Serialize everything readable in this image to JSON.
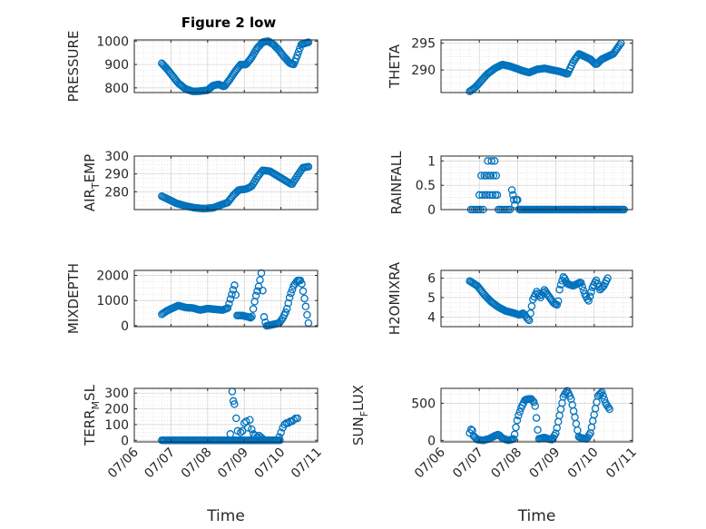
{
  "figure_title": "Figure 2 low",
  "x_tick_labels": [
    "07/06",
    "07/07",
    "07/08",
    "07/09",
    "07/10",
    "07/11"
  ],
  "xlabel": "Time",
  "marker_color": "#0072BD",
  "chart_data": [
    {
      "type": "scatter",
      "panel": "top-left",
      "ylabel": "PRESSURE",
      "xlim": [
        0,
        5
      ],
      "ylim": [
        780,
        1005
      ],
      "yticks": [
        800,
        900,
        1000
      ],
      "x_tick_labels_shown": false,
      "grid": true,
      "marker": "open-circle",
      "anchors": [
        [
          0.75,
          905
        ],
        [
          0.9,
          880
        ],
        [
          1.05,
          850
        ],
        [
          1.2,
          820
        ],
        [
          1.4,
          795
        ],
        [
          1.6,
          785
        ],
        [
          1.8,
          786
        ],
        [
          2.0,
          790
        ],
        [
          2.15,
          810
        ],
        [
          2.3,
          815
        ],
        [
          2.45,
          805
        ],
        [
          2.6,
          835
        ],
        [
          2.75,
          870
        ],
        [
          2.9,
          900
        ],
        [
          3.05,
          900
        ],
        [
          3.2,
          930
        ],
        [
          3.35,
          970
        ],
        [
          3.5,
          995
        ],
        [
          3.65,
          1000
        ],
        [
          3.8,
          985
        ],
        [
          3.95,
          960
        ],
        [
          4.1,
          930
        ],
        [
          4.25,
          905
        ],
        [
          4.35,
          900
        ],
        [
          4.45,
          940
        ],
        [
          4.55,
          985
        ],
        [
          4.75,
          995
        ]
      ],
      "n_points": 120
    },
    {
      "type": "scatter",
      "panel": "top-right",
      "ylabel": "THETA",
      "xlim": [
        0,
        5
      ],
      "ylim": [
        285.8,
        295.6
      ],
      "yticks": [
        290,
        295
      ],
      "x_tick_labels_shown": false,
      "grid": true,
      "marker": "open-circle",
      "anchors": [
        [
          0.75,
          286
        ],
        [
          0.9,
          286.8
        ],
        [
          1.05,
          288
        ],
        [
          1.2,
          289.2
        ],
        [
          1.4,
          290.3
        ],
        [
          1.6,
          291
        ],
        [
          1.8,
          290.7
        ],
        [
          2.0,
          290.2
        ],
        [
          2.15,
          289.8
        ],
        [
          2.3,
          289.5
        ],
        [
          2.5,
          290.1
        ],
        [
          2.7,
          290.3
        ],
        [
          2.9,
          290
        ],
        [
          3.05,
          289.8
        ],
        [
          3.2,
          289.5
        ],
        [
          3.3,
          289.2
        ],
        [
          3.45,
          291.5
        ],
        [
          3.6,
          293
        ],
        [
          3.75,
          292.5
        ],
        [
          3.9,
          292
        ],
        [
          4.05,
          291
        ],
        [
          4.2,
          292
        ],
        [
          4.35,
          292.5
        ],
        [
          4.5,
          293
        ],
        [
          4.7,
          295
        ]
      ],
      "n_points": 120
    },
    {
      "type": "scatter",
      "panel": "mid-left",
      "ylabel": "AIR_TEMP",
      "xlim": [
        0,
        5
      ],
      "ylim": [
        270,
        300
      ],
      "yticks": [
        280,
        290,
        300
      ],
      "x_tick_labels_shown": false,
      "grid": true,
      "marker": "open-circle",
      "anchors": [
        [
          0.75,
          277.5
        ],
        [
          0.95,
          275.5
        ],
        [
          1.15,
          273.5
        ],
        [
          1.4,
          272
        ],
        [
          1.65,
          271
        ],
        [
          1.9,
          270.5
        ],
        [
          2.15,
          271
        ],
        [
          2.35,
          272.5
        ],
        [
          2.55,
          274
        ],
        [
          2.7,
          278
        ],
        [
          2.85,
          281
        ],
        [
          3.05,
          281.5
        ],
        [
          3.2,
          283
        ],
        [
          3.35,
          288
        ],
        [
          3.5,
          292
        ],
        [
          3.7,
          291.5
        ],
        [
          3.9,
          289
        ],
        [
          4.1,
          286.5
        ],
        [
          4.3,
          284
        ],
        [
          4.45,
          289
        ],
        [
          4.6,
          293.5
        ],
        [
          4.75,
          294
        ]
      ],
      "n_points": 110
    },
    {
      "type": "scatter",
      "panel": "mid-right",
      "ylabel": "RAINFALL",
      "xlim": [
        0,
        5
      ],
      "ylim": [
        0,
        1.1
      ],
      "yticks": [
        0,
        0.5,
        1
      ],
      "x_tick_labels_shown": false,
      "grid": true,
      "marker": "open-circle",
      "points": [
        [
          0.78,
          0
        ],
        [
          0.83,
          0
        ],
        [
          0.88,
          0
        ],
        [
          0.93,
          0
        ],
        [
          0.98,
          0
        ],
        [
          1.0,
          0.3
        ],
        [
          1.03,
          0
        ],
        [
          1.05,
          0.7
        ],
        [
          1.08,
          0.3
        ],
        [
          1.1,
          0
        ],
        [
          1.13,
          0.7
        ],
        [
          1.15,
          0.3
        ],
        [
          1.18,
          0.7
        ],
        [
          1.2,
          0.3
        ],
        [
          1.22,
          1.0
        ],
        [
          1.25,
          0.7
        ],
        [
          1.27,
          0.3
        ],
        [
          1.3,
          0.7
        ],
        [
          1.32,
          1.0
        ],
        [
          1.35,
          0.3
        ],
        [
          1.37,
          0.7
        ],
        [
          1.4,
          1.0
        ],
        [
          1.42,
          0.3
        ],
        [
          1.44,
          0.7
        ],
        [
          1.47,
          0.3
        ],
        [
          1.5,
          0
        ],
        [
          1.55,
          0
        ],
        [
          1.6,
          0
        ],
        [
          1.65,
          0
        ],
        [
          1.7,
          0
        ],
        [
          1.75,
          0
        ],
        [
          1.8,
          0
        ],
        [
          1.85,
          0.4
        ],
        [
          1.88,
          0.3
        ],
        [
          1.9,
          0.2
        ],
        [
          1.93,
          0.1
        ],
        [
          1.97,
          0.2
        ],
        [
          2.0,
          0.2
        ]
      ],
      "zero_fill": [
        2.05,
        4.78
      ]
    },
    {
      "type": "scatter",
      "panel": "lower-left",
      "ylabel": "MIXDEPTH",
      "xlim": [
        0,
        5
      ],
      "ylim": [
        -40,
        2200
      ],
      "yticks": [
        0,
        1000,
        2000
      ],
      "x_tick_labels_shown": false,
      "grid": true,
      "marker": "open-circle",
      "anchors": [
        [
          0.75,
          450
        ],
        [
          0.9,
          600
        ],
        [
          1.05,
          700
        ],
        [
          1.2,
          800
        ],
        [
          1.4,
          720
        ],
        [
          1.6,
          700
        ],
        [
          1.8,
          620
        ],
        [
          2.0,
          680
        ],
        [
          2.2,
          650
        ],
        [
          2.4,
          620
        ],
        [
          2.55,
          700
        ],
        [
          2.65,
          1200
        ],
        [
          2.75,
          1700
        ],
        [
          2.8,
          400
        ],
        [
          2.95,
          400
        ],
        [
          3.1,
          350
        ],
        [
          3.2,
          300
        ],
        [
          3.3,
          1100
        ],
        [
          3.4,
          1600
        ],
        [
          3.48,
          2200
        ],
        [
          3.53,
          400
        ],
        [
          3.6,
          -10
        ],
        [
          3.8,
          50
        ],
        [
          3.95,
          100
        ],
        [
          4.05,
          300
        ],
        [
          4.15,
          600
        ],
        [
          4.25,
          1200
        ],
        [
          4.35,
          1600
        ],
        [
          4.45,
          1800
        ],
        [
          4.55,
          1800
        ],
        [
          4.65,
          1000
        ],
        [
          4.75,
          100
        ]
      ],
      "n_points": 110
    },
    {
      "type": "scatter",
      "panel": "lower-right",
      "ylabel": "H2OMIXRA",
      "xlim": [
        0,
        5
      ],
      "ylim": [
        3.5,
        6.4
      ],
      "yticks": [
        4,
        5,
        6
      ],
      "x_tick_labels_shown": false,
      "grid": true,
      "marker": "open-circle",
      "anchors": [
        [
          0.75,
          5.85
        ],
        [
          0.95,
          5.6
        ],
        [
          1.15,
          5.1
        ],
        [
          1.3,
          4.8
        ],
        [
          1.5,
          4.5
        ],
        [
          1.7,
          4.3
        ],
        [
          1.9,
          4.2
        ],
        [
          2.05,
          4.1
        ],
        [
          2.15,
          4.2
        ],
        [
          2.3,
          3.8
        ],
        [
          2.4,
          4.9
        ],
        [
          2.5,
          5.3
        ],
        [
          2.6,
          5.0
        ],
        [
          2.7,
          5.4
        ],
        [
          2.8,
          5.1
        ],
        [
          2.95,
          4.7
        ],
        [
          3.05,
          4.6
        ],
        [
          3.1,
          5.5
        ],
        [
          3.2,
          6.1
        ],
        [
          3.3,
          5.7
        ],
        [
          3.45,
          5.6
        ],
        [
          3.55,
          5.7
        ],
        [
          3.65,
          5.8
        ],
        [
          3.75,
          5.2
        ],
        [
          3.85,
          4.8
        ],
        [
          3.95,
          5.5
        ],
        [
          4.05,
          5.9
        ],
        [
          4.15,
          5.4
        ],
        [
          4.25,
          5.6
        ],
        [
          4.35,
          6.0
        ]
      ],
      "n_points": 110
    },
    {
      "type": "scatter",
      "panel": "bottom-left",
      "ylabel": "TERR_MSL",
      "xlim": [
        0,
        5
      ],
      "ylim": [
        -10,
        330
      ],
      "yticks": [
        0,
        100,
        200,
        300
      ],
      "x_tick_labels_shown": true,
      "xlabel": "Time",
      "grid": true,
      "marker": "open-circle",
      "points": [
        [
          2.62,
          40
        ],
        [
          2.67,
          310
        ],
        [
          2.7,
          250
        ],
        [
          2.73,
          230
        ],
        [
          2.78,
          140
        ],
        [
          2.82,
          60
        ],
        [
          2.9,
          50
        ],
        [
          2.95,
          60
        ],
        [
          3.0,
          110
        ],
        [
          3.05,
          120
        ],
        [
          3.1,
          80
        ],
        [
          3.15,
          130
        ],
        [
          3.2,
          70
        ],
        [
          3.25,
          40
        ],
        [
          3.3,
          30
        ],
        [
          3.35,
          20
        ],
        [
          3.4,
          30
        ],
        [
          3.45,
          20
        ],
        [
          3.5,
          10
        ],
        [
          3.95,
          20
        ],
        [
          4.0,
          50
        ],
        [
          4.05,
          80
        ],
        [
          4.1,
          100
        ],
        [
          4.15,
          110
        ],
        [
          4.2,
          110
        ],
        [
          4.25,
          120
        ],
        [
          4.3,
          120
        ],
        [
          4.35,
          130
        ],
        [
          4.4,
          140
        ],
        [
          4.45,
          140
        ]
      ],
      "zero_fill": [
        0.75,
        4.0
      ]
    },
    {
      "type": "scatter",
      "panel": "bottom-right",
      "ylabel": "SUN_FLUX",
      "xlim": [
        0,
        5
      ],
      "ylim": [
        -20,
        700
      ],
      "yticks": [
        0,
        500
      ],
      "x_tick_labels_shown": true,
      "xlabel": "Time",
      "grid": true,
      "marker": "open-circle",
      "anchors": [
        [
          0.75,
          100
        ],
        [
          0.8,
          170
        ],
        [
          0.85,
          60
        ],
        [
          0.95,
          10
        ],
        [
          1.1,
          0
        ],
        [
          1.25,
          20
        ],
        [
          1.4,
          60
        ],
        [
          1.5,
          80
        ],
        [
          1.6,
          30
        ],
        [
          1.75,
          0
        ],
        [
          1.9,
          20
        ],
        [
          2.0,
          300
        ],
        [
          2.1,
          450
        ],
        [
          2.2,
          550
        ],
        [
          2.35,
          560
        ],
        [
          2.45,
          500
        ],
        [
          2.55,
          20
        ],
        [
          2.7,
          40
        ],
        [
          2.8,
          20
        ],
        [
          2.9,
          10
        ],
        [
          3.0,
          100
        ],
        [
          3.1,
          350
        ],
        [
          3.2,
          600
        ],
        [
          3.3,
          670
        ],
        [
          3.4,
          550
        ],
        [
          3.5,
          300
        ],
        [
          3.6,
          40
        ],
        [
          3.7,
          30
        ],
        [
          3.8,
          20
        ],
        [
          3.9,
          100
        ],
        [
          4.0,
          350
        ],
        [
          4.1,
          600
        ],
        [
          4.2,
          650
        ],
        [
          4.3,
          500
        ],
        [
          4.4,
          420
        ]
      ],
      "n_points": 110
    }
  ]
}
